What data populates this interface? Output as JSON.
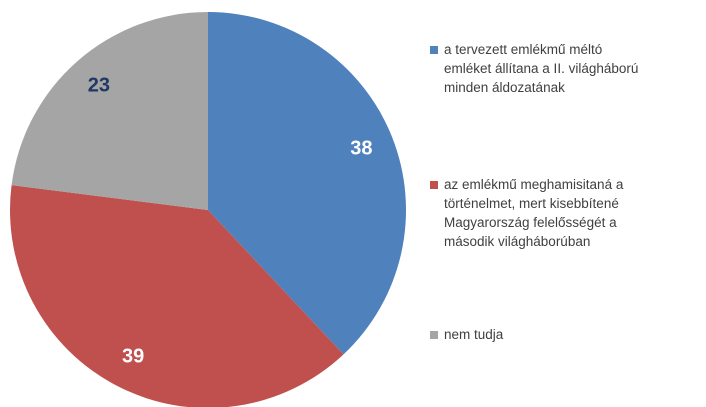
{
  "chart_data": {
    "type": "pie",
    "categories": [
      "a tervezett emlékmű méltó emléket állítana a II. világháború minden áldozatának",
      "az emlékmű meghamisitaná a történelmet, mert kisebbítené Magyarország felelősségét a második világháborúban",
      "nem tudja"
    ],
    "values": [
      38,
      39,
      23
    ],
    "colors": [
      "#4f81bd",
      "#c0504d",
      "#a5a5a5"
    ],
    "label_colors": [
      "#ffffff",
      "#ffffff",
      "#1f3864"
    ],
    "legend": "right"
  }
}
